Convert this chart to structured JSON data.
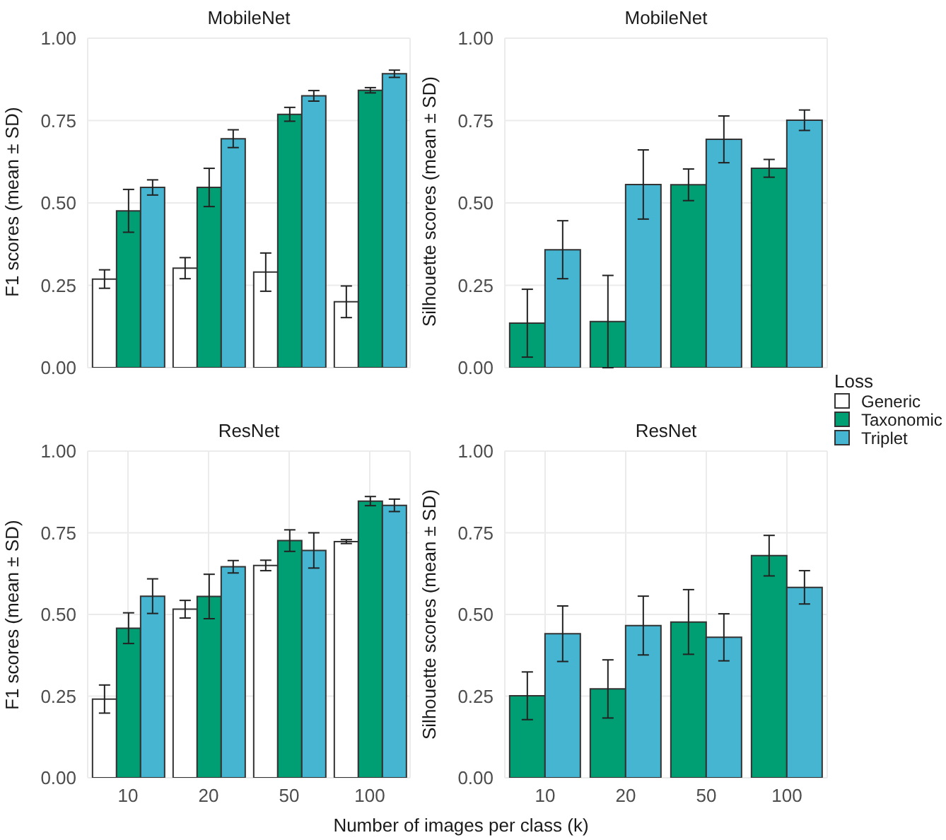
{
  "chart_data": [
    {
      "type": "bar",
      "title": "MobileNet",
      "ylabel": "F1 scores (mean ± SD)",
      "legend_title": "Loss",
      "legend": "right",
      "grid": true,
      "tick_labels": "y",
      "categories": [
        "10",
        "20",
        "50",
        "100"
      ],
      "ylim": [
        0,
        1
      ],
      "yticks": [
        {
          "value": 0,
          "label": "0.00"
        },
        {
          "value": 0.25,
          "label": "0.25"
        },
        {
          "value": 0.5,
          "label": "0.50"
        },
        {
          "value": 0.75,
          "label": "0.75"
        },
        {
          "value": 1,
          "label": "1.00"
        }
      ],
      "series": [
        {
          "name": "Generic",
          "color": "#ffffff",
          "values": [
            0.269,
            0.302,
            0.29,
            0.2
          ],
          "errors": [
            0.028,
            0.032,
            0.058,
            0.048
          ]
        },
        {
          "name": "Taxonomic",
          "color": "#009e73",
          "values": [
            0.476,
            0.547,
            0.769,
            0.842
          ],
          "errors": [
            0.065,
            0.058,
            0.021,
            0.008
          ]
        },
        {
          "name": "Triplet",
          "color": "#45b5d1",
          "values": [
            0.547,
            0.695,
            0.825,
            0.892
          ],
          "errors": [
            0.023,
            0.027,
            0.016,
            0.011
          ]
        }
      ]
    },
    {
      "type": "bar",
      "title": "MobileNet",
      "ylabel": "Silhouette scores (mean ± SD)",
      "grid": true,
      "tick_labels": "y",
      "categories": [
        "10",
        "20",
        "50",
        "100"
      ],
      "ylim": [
        0,
        1
      ],
      "yticks": [
        {
          "value": 0,
          "label": "0.00"
        },
        {
          "value": 0.25,
          "label": "0.25"
        },
        {
          "value": 0.5,
          "label": "0.50"
        },
        {
          "value": 0.75,
          "label": "0.75"
        },
        {
          "value": 1,
          "label": "1.00"
        }
      ],
      "series": [
        {
          "color": "#009e73",
          "values": [
            0.135,
            0.14,
            0.555,
            0.605
          ],
          "errors": [
            0.103,
            0.14,
            0.048,
            0.027
          ]
        },
        {
          "color": "#45b5d1",
          "values": [
            0.358,
            0.556,
            0.693,
            0.751
          ],
          "errors": [
            0.088,
            0.105,
            0.071,
            0.031
          ]
        }
      ]
    },
    {
      "type": "bar",
      "title": "ResNet",
      "ylabel": "F1 scores (mean ± SD)",
      "xlabel": "Number of images per class (k)",
      "grid": true,
      "categories": [
        "10",
        "20",
        "50",
        "100"
      ],
      "ylim": [
        0,
        1
      ],
      "yticks": [
        {
          "value": 0,
          "label": "0.00"
        },
        {
          "value": 0.25,
          "label": "0.25"
        },
        {
          "value": 0.5,
          "label": "0.50"
        },
        {
          "value": 0.75,
          "label": "0.75"
        },
        {
          "value": 1,
          "label": "1.00"
        }
      ],
      "series": [
        {
          "color": "#ffffff",
          "values": [
            0.241,
            0.516,
            0.65,
            0.723
          ],
          "errors": [
            0.043,
            0.027,
            0.016,
            0.006
          ]
        },
        {
          "color": "#009e73",
          "values": [
            0.458,
            0.555,
            0.726,
            0.847
          ],
          "errors": [
            0.047,
            0.068,
            0.033,
            0.014
          ]
        },
        {
          "color": "#45b5d1",
          "values": [
            0.556,
            0.646,
            0.696,
            0.834
          ],
          "errors": [
            0.053,
            0.019,
            0.054,
            0.019
          ]
        }
      ]
    },
    {
      "type": "bar",
      "title": "ResNet",
      "ylabel": "Silhouette scores (mean ± SD)",
      "grid": true,
      "categories": [
        "10",
        "20",
        "50",
        "100"
      ],
      "ylim": [
        0,
        1
      ],
      "yticks": [
        {
          "value": 0,
          "label": "0.00"
        },
        {
          "value": 0.25,
          "label": "0.25"
        },
        {
          "value": 0.5,
          "label": "0.50"
        },
        {
          "value": 0.75,
          "label": "0.75"
        },
        {
          "value": 1,
          "label": "1.00"
        }
      ],
      "series": [
        {
          "color": "#009e73",
          "values": [
            0.251,
            0.272,
            0.477,
            0.68
          ],
          "errors": [
            0.073,
            0.089,
            0.099,
            0.062
          ]
        },
        {
          "color": "#45b5d1",
          "values": [
            0.441,
            0.466,
            0.43,
            0.583
          ],
          "errors": [
            0.085,
            0.09,
            0.072,
            0.051
          ]
        }
      ]
    }
  ]
}
